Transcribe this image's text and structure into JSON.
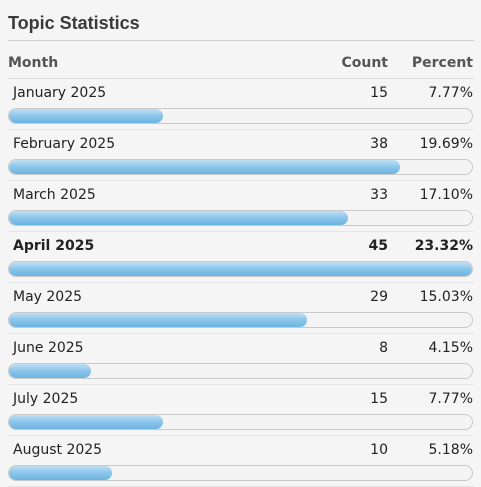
{
  "panel": {
    "title": "Topic Statistics",
    "columns": {
      "month": "Month",
      "count": "Count",
      "percent": "Percent"
    },
    "rows": [
      {
        "month": "January 2025",
        "count": "15",
        "percent": "7.77%",
        "fraction": 0.333,
        "highlight": false
      },
      {
        "month": "February 2025",
        "count": "38",
        "percent": "19.69%",
        "fraction": 0.844,
        "highlight": false
      },
      {
        "month": "March 2025",
        "count": "33",
        "percent": "17.10%",
        "fraction": 0.733,
        "highlight": false
      },
      {
        "month": "April 2025",
        "count": "45",
        "percent": "23.32%",
        "fraction": 1.0,
        "highlight": true
      },
      {
        "month": "May 2025",
        "count": "29",
        "percent": "15.03%",
        "fraction": 0.644,
        "highlight": false
      },
      {
        "month": "June 2025",
        "count": "8",
        "percent": "4.15%",
        "fraction": 0.178,
        "highlight": false
      },
      {
        "month": "July 2025",
        "count": "15",
        "percent": "7.77%",
        "fraction": 0.333,
        "highlight": false
      },
      {
        "month": "August 2025",
        "count": "10",
        "percent": "5.18%",
        "fraction": 0.222,
        "highlight": false
      }
    ],
    "bar_color": "#7fbde6"
  }
}
